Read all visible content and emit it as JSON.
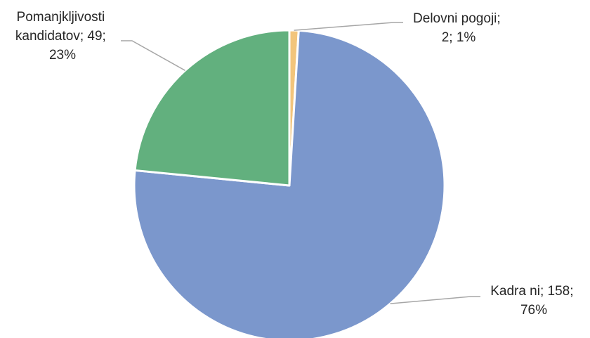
{
  "chart_data": {
    "type": "pie",
    "title": "",
    "slices": [
      {
        "name": "Delovni pogoji",
        "value": 2,
        "percent": "1%",
        "color": "#F2C57C",
        "label_lines": [
          "Delovni pogoji;",
          "2; 1%"
        ]
      },
      {
        "name": "Kadra ni",
        "value": 158,
        "percent": "76%",
        "color": "#7B97CC",
        "label_lines": [
          "Kadra ni; 158;",
          "76%"
        ]
      },
      {
        "name": "Pomanjkljivosti kandidatov",
        "value": 49,
        "percent": "23%",
        "color": "#62B07E",
        "label_lines": [
          "Pomanjkljivosti",
          "kandidatov; 49;",
          "23%"
        ]
      }
    ],
    "start_angle_deg": 0,
    "direction": "clockwise",
    "legend": "none",
    "data_labels": "outside-with-leader-lines"
  }
}
